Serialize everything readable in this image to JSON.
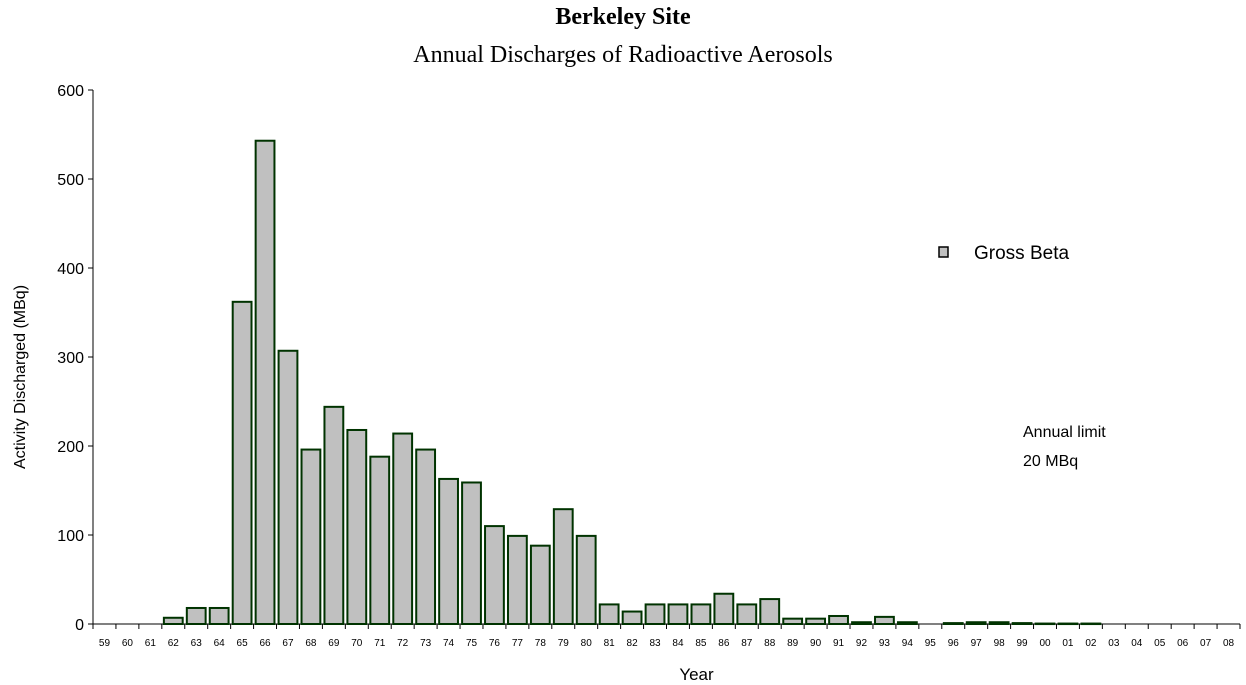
{
  "chart_data": {
    "type": "bar",
    "title": "Berkeley Site",
    "subtitle": "Annual Discharges of Radioactive Aerosols",
    "xlabel": "Year",
    "ylabel": "Activity Discharged (MBq)",
    "ylim": [
      0,
      600
    ],
    "yticks": [
      "0",
      "100",
      "200",
      "300",
      "400",
      "500",
      "600"
    ],
    "grid": false,
    "legend_position": "right",
    "categories": [
      "59",
      "60",
      "61",
      "62",
      "63",
      "64",
      "65",
      "66",
      "67",
      "68",
      "69",
      "70",
      "71",
      "72",
      "73",
      "74",
      "75",
      "76",
      "77",
      "78",
      "79",
      "80",
      "81",
      "82",
      "83",
      "84",
      "85",
      "86",
      "87",
      "88",
      "89",
      "90",
      "91",
      "92",
      "93",
      "94",
      "95",
      "96",
      "97",
      "98",
      "99",
      "00",
      "01",
      "02",
      "03",
      "04",
      "05",
      "06",
      "07",
      "08"
    ],
    "series": [
      {
        "name": "Gross Beta",
        "color": "#c0c0c0",
        "edge_color": "#003300",
        "values": [
          0,
          0,
          0,
          7,
          18,
          18,
          362,
          543,
          307,
          196,
          244,
          218,
          188,
          214,
          196,
          163,
          159,
          110,
          99,
          88,
          129,
          99,
          22,
          14,
          22,
          22,
          22,
          34,
          22,
          28,
          6,
          6,
          9,
          2,
          8,
          2,
          0,
          1,
          2,
          2,
          1,
          0.5,
          0.5,
          0.5,
          0,
          0,
          0,
          0,
          0,
          0
        ]
      }
    ],
    "annotations": [
      {
        "line1": "Annual limit",
        "line2": "20 MBq"
      }
    ]
  }
}
